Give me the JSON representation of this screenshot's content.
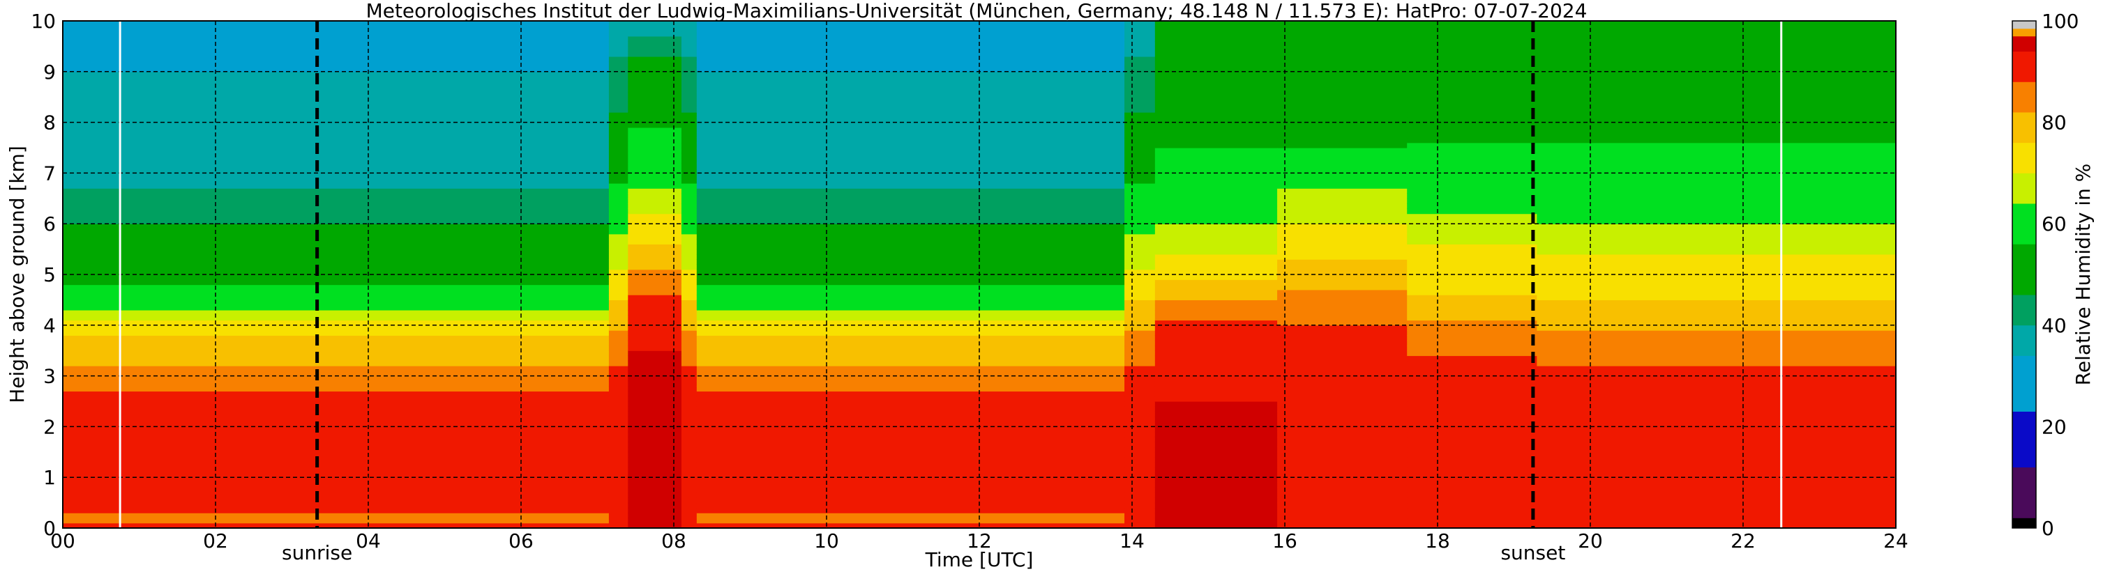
{
  "chart_data": {
    "type": "heatmap",
    "title": "Meteorologisches Institut der Ludwig-Maximilians-Universität (München, Germany; 48.148 N / 11.573 E):    HatPro: 07-07-2024",
    "xlabel": "Time [UTC]",
    "ylabel": "Height above ground [km]",
    "xlim": [
      0,
      24
    ],
    "ylim": [
      0,
      10
    ],
    "x_ticks": [
      "00",
      "02",
      "04",
      "06",
      "08",
      "10",
      "12",
      "14",
      "16",
      "18",
      "20",
      "22",
      "24"
    ],
    "y_ticks": [
      "0",
      "1",
      "2",
      "3",
      "4",
      "5",
      "6",
      "7",
      "8",
      "9",
      "10"
    ],
    "grid": true,
    "annotations": [
      {
        "label": "sunrise",
        "x": 3.33
      },
      {
        "label": "sunset",
        "x": 19.25
      }
    ],
    "white_lines_x": [
      0.75,
      22.5
    ],
    "colorbar": {
      "label": "Relative Humidity in %",
      "ticks": [
        "0",
        "20",
        "40",
        "60",
        "80",
        "100"
      ],
      "range": [
        0,
        100
      ],
      "levels": [
        {
          "from": 0,
          "to": 2,
          "color": "#000000"
        },
        {
          "from": 2,
          "to": 12,
          "color": "#4a0a5a"
        },
        {
          "from": 12,
          "to": 23,
          "color": "#0a0ac8"
        },
        {
          "from": 23,
          "to": 34,
          "color": "#00a0d0"
        },
        {
          "from": 34,
          "to": 40,
          "color": "#00a8a8"
        },
        {
          "from": 40,
          "to": 46,
          "color": "#00a060"
        },
        {
          "from": 46,
          "to": 56,
          "color": "#00a800"
        },
        {
          "from": 56,
          "to": 64,
          "color": "#00e020"
        },
        {
          "from": 64,
          "to": 70,
          "color": "#c8f000"
        },
        {
          "from": 70,
          "to": 76,
          "color": "#f8e000"
        },
        {
          "from": 76,
          "to": 82,
          "color": "#f8c000"
        },
        {
          "from": 82,
          "to": 88,
          "color": "#f88000"
        },
        {
          "from": 88,
          "to": 94,
          "color": "#f01800"
        },
        {
          "from": 94,
          "to": 97,
          "color": "#d00000"
        },
        {
          "from": 97,
          "to": 98.5,
          "color": "#f8a000"
        },
        {
          "from": 98.5,
          "to": 100,
          "color": "#c8c8c8"
        }
      ]
    },
    "regimes": [
      {
        "from": 0.0,
        "to": 7.15,
        "profile": "morning"
      },
      {
        "from": 7.15,
        "to": 7.4,
        "profile": "moist_edge"
      },
      {
        "from": 7.4,
        "to": 8.1,
        "profile": "moist"
      },
      {
        "from": 8.1,
        "to": 8.3,
        "profile": "moist_edge"
      },
      {
        "from": 8.3,
        "to": 13.9,
        "profile": "morning"
      },
      {
        "from": 13.9,
        "to": 14.3,
        "profile": "moist_edge"
      },
      {
        "from": 14.3,
        "to": 15.9,
        "profile": "afternoon"
      },
      {
        "from": 15.9,
        "to": 17.6,
        "profile": "afternoon2"
      },
      {
        "from": 17.6,
        "to": 19.3,
        "profile": "evening"
      },
      {
        "from": 19.3,
        "to": 24.0,
        "profile": "night"
      }
    ],
    "profiles": {
      "morning": [
        {
          "h": 0.0,
          "rh": 96
        },
        {
          "h": 0.15,
          "rh": 82
        },
        {
          "h": 0.35,
          "rh": 91
        },
        {
          "h": 2.5,
          "rh": 90
        },
        {
          "h": 3.0,
          "rh": 84
        },
        {
          "h": 3.7,
          "rh": 78
        },
        {
          "h": 4.1,
          "rh": 70
        },
        {
          "h": 4.5,
          "rh": 58
        },
        {
          "h": 5.0,
          "rh": 54
        },
        {
          "h": 5.5,
          "rh": 48
        },
        {
          "h": 6.0,
          "rh": 46
        },
        {
          "h": 6.3,
          "rh": 42
        },
        {
          "h": 7.0,
          "rh": 38
        },
        {
          "h": 8.0,
          "rh": 36
        },
        {
          "h": 9.0,
          "rh": 34
        },
        {
          "h": 10.0,
          "rh": 30
        }
      ],
      "moist": [
        {
          "h": 0.0,
          "rh": 95
        },
        {
          "h": 2.0,
          "rh": 95
        },
        {
          "h": 2.4,
          "rh": 97
        },
        {
          "h": 3.2,
          "rh": 95
        },
        {
          "h": 4.2,
          "rh": 91
        },
        {
          "h": 4.8,
          "rh": 86
        },
        {
          "h": 5.4,
          "rh": 78
        },
        {
          "h": 6.2,
          "rh": 70
        },
        {
          "h": 6.8,
          "rh": 62
        },
        {
          "h": 7.6,
          "rh": 58
        },
        {
          "h": 8.6,
          "rh": 50
        },
        {
          "h": 9.3,
          "rh": 46
        },
        {
          "h": 9.7,
          "rh": 40
        },
        {
          "h": 10.0,
          "rh": 34
        }
      ],
      "moist_edge": [
        {
          "h": 0.0,
          "rh": 93
        },
        {
          "h": 2.5,
          "rh": 92
        },
        {
          "h": 3.5,
          "rh": 86
        },
        {
          "h": 4.5,
          "rh": 76
        },
        {
          "h": 5.5,
          "rh": 66
        },
        {
          "h": 6.5,
          "rh": 58
        },
        {
          "h": 7.5,
          "rh": 50
        },
        {
          "h": 8.5,
          "rh": 44
        },
        {
          "h": 10.0,
          "rh": 36
        }
      ],
      "afternoon": [
        {
          "h": 0.0,
          "rh": 95
        },
        {
          "h": 2.5,
          "rh": 94
        },
        {
          "h": 3.6,
          "rh": 91
        },
        {
          "h": 4.1,
          "rh": 88
        },
        {
          "h": 4.6,
          "rh": 80
        },
        {
          "h": 5.2,
          "rh": 72
        },
        {
          "h": 6.0,
          "rh": 64
        },
        {
          "h": 6.6,
          "rh": 60
        },
        {
          "h": 7.5,
          "rh": 56
        },
        {
          "h": 8.8,
          "rh": 52
        },
        {
          "h": 10.0,
          "rh": 50
        }
      ],
      "afternoon2": [
        {
          "h": 0.0,
          "rh": 94
        },
        {
          "h": 3.0,
          "rh": 92
        },
        {
          "h": 4.3,
          "rh": 87
        },
        {
          "h": 5.0,
          "rh": 78
        },
        {
          "h": 5.8,
          "rh": 72
        },
        {
          "h": 6.7,
          "rh": 64
        },
        {
          "h": 7.5,
          "rh": 56
        },
        {
          "h": 9.0,
          "rh": 50
        },
        {
          "h": 10.0,
          "rh": 48
        }
      ],
      "evening": [
        {
          "h": 0.0,
          "rh": 93
        },
        {
          "h": 2.0,
          "rh": 92
        },
        {
          "h": 3.0,
          "rh": 90
        },
        {
          "h": 3.8,
          "rh": 86
        },
        {
          "h": 4.6,
          "rh": 76
        },
        {
          "h": 5.4,
          "rh": 72
        },
        {
          "h": 6.2,
          "rh": 64
        },
        {
          "h": 7.2,
          "rh": 58
        },
        {
          "h": 8.5,
          "rh": 52
        },
        {
          "h": 10.0,
          "rh": 50
        }
      ],
      "night": [
        {
          "h": 0.0,
          "rh": 92
        },
        {
          "h": 2.0,
          "rh": 91
        },
        {
          "h": 3.1,
          "rh": 89
        },
        {
          "h": 3.7,
          "rh": 84
        },
        {
          "h": 4.5,
          "rh": 76
        },
        {
          "h": 5.4,
          "rh": 70
        },
        {
          "h": 6.0,
          "rh": 64
        },
        {
          "h": 6.8,
          "rh": 60
        },
        {
          "h": 7.6,
          "rh": 56
        },
        {
          "h": 9.0,
          "rh": 52
        },
        {
          "h": 10.0,
          "rh": 48
        }
      ]
    }
  }
}
